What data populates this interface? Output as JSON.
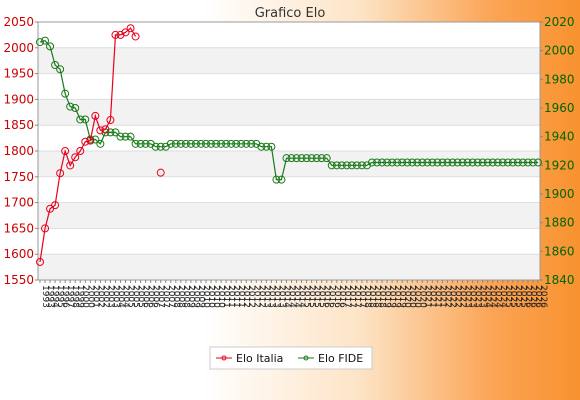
{
  "chart_data": {
    "type": "line",
    "title": "Grafico Elo",
    "categories": [
      "1993",
      "1993",
      "1994",
      "1995",
      "1996",
      "1997",
      "1998",
      "1999",
      "2000",
      "2000",
      "2001",
      "2002",
      "2002",
      "2003",
      "2003",
      "2004",
      "2004",
      "2005",
      "2005",
      "2005",
      "2006",
      "2006",
      "2006",
      "2007",
      "2007",
      "2007",
      "2008",
      "2008",
      "2008",
      "2009",
      "2009",
      "2009",
      "2010",
      "2010",
      "2010",
      "2010",
      "2011",
      "2011",
      "2011",
      "2011",
      "2012",
      "2012",
      "2012",
      "2012",
      "2013",
      "2013",
      "2013",
      "2013",
      "2014",
      "2014",
      "2014",
      "2014",
      "2015",
      "2015",
      "2015",
      "2015",
      "2016",
      "2016",
      "2016",
      "2016",
      "2017",
      "2017",
      "2017",
      "2017",
      "2018",
      "2018",
      "2018",
      "2018",
      "2019",
      "2019",
      "2019",
      "2019",
      "2020",
      "2020",
      "2020",
      "2020",
      "2021",
      "2021",
      "2021",
      "2021",
      "2022",
      "2022",
      "2022",
      "2022",
      "2023",
      "2023",
      "2023",
      "2023",
      "2024",
      "2024",
      "2024",
      "2024",
      "2025",
      "2025",
      "2025",
      "2025",
      "2026",
      "2026",
      "2026",
      "2026"
    ],
    "y_left": {
      "range": [
        1550,
        2050
      ],
      "ticks": [
        "1550",
        "1600",
        "1650",
        "1700",
        "1750",
        "1800",
        "1850",
        "1900",
        "1950",
        "2000",
        "2050"
      ]
    },
    "y_right": {
      "range": [
        1840,
        2020
      ],
      "ticks": [
        "1840",
        "1860",
        "1880",
        "1900",
        "1920",
        "1940",
        "1960",
        "1980",
        "2000",
        "2020"
      ]
    },
    "grid": true,
    "legend_position": "bottom",
    "colors": {
      "italia": "#e8001c",
      "fide": "#1a7a1a"
    },
    "series": [
      {
        "name": "Elo Italia",
        "axis": "left",
        "color": "#e8001c",
        "points": [
          [
            0,
            1585
          ],
          [
            1,
            1650
          ],
          [
            2,
            1688
          ],
          [
            3,
            1695
          ],
          [
            4,
            1757
          ],
          [
            5,
            1800
          ],
          [
            6,
            1772
          ],
          [
            7,
            1788
          ],
          [
            8,
            1800
          ],
          [
            9,
            1818
          ],
          [
            10,
            1820
          ],
          [
            11,
            1868
          ],
          [
            12,
            1840
          ],
          [
            13,
            1842
          ],
          [
            14,
            1860
          ],
          [
            15,
            2025
          ],
          [
            16,
            2025
          ],
          [
            17,
            2030
          ],
          [
            18,
            2038
          ],
          [
            19,
            2022
          ],
          null,
          null,
          null,
          null,
          [
            24,
            1758
          ]
        ]
      },
      {
        "name": "Elo FIDE",
        "axis": "right",
        "color": "#1a7a1a",
        "values": [
          2006,
          2007,
          2003,
          1990,
          1987,
          1970,
          1961,
          1960,
          1952,
          1952,
          1938,
          1938,
          1935,
          1943,
          1943,
          1943,
          1940,
          1940,
          1940,
          1935,
          1935,
          1935,
          1935,
          1933,
          1933,
          1933,
          1935,
          1935,
          1935,
          1935,
          1935,
          1935,
          1935,
          1935,
          1935,
          1935,
          1935,
          1935,
          1935,
          1935,
          1935,
          1935,
          1935,
          1935,
          1933,
          1933,
          1933,
          1910,
          1910,
          1925,
          1925,
          1925,
          1925,
          1925,
          1925,
          1925,
          1925,
          1925,
          1920,
          1920,
          1920,
          1920,
          1920,
          1920,
          1920,
          1920,
          1922,
          1922,
          1922,
          1922,
          1922,
          1922,
          1922,
          1922,
          1922,
          1922,
          1922,
          1922,
          1922,
          1922,
          1922,
          1922,
          1922,
          1922,
          1922,
          1922,
          1922,
          1922,
          1922,
          1922,
          1922,
          1922,
          1922,
          1922,
          1922,
          1922,
          1922,
          1922,
          1922,
          1922
        ]
      }
    ]
  }
}
